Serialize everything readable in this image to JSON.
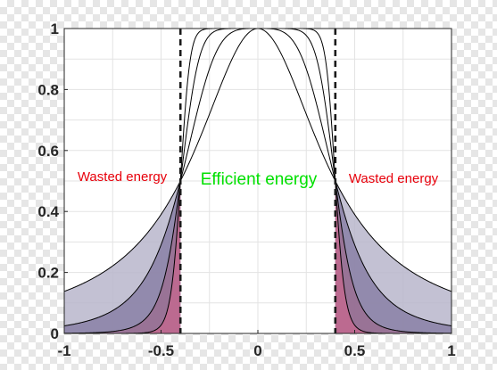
{
  "chart_data": {
    "type": "area",
    "title": "",
    "xlabel": "",
    "ylabel": "",
    "xlim": [
      -1,
      1
    ],
    "ylim": [
      0,
      1
    ],
    "x_ticks": [
      "-1",
      "-0.5",
      "0",
      "0.5",
      "1"
    ],
    "x_tick_values": [
      -1,
      -0.5,
      0,
      0.5,
      1
    ],
    "y_ticks": [
      "0",
      "0.2",
      "0.4",
      "0.6",
      "0.8",
      "1"
    ],
    "y_tick_values": [
      0,
      0.2,
      0.4,
      0.6,
      0.8,
      1
    ],
    "grid": true,
    "cutoffs": [
      -0.4,
      0.4
    ],
    "series": [
      {
        "order": 2,
        "fill": "#b9b6cb",
        "x": [
          -1,
          -0.8,
          -0.6,
          -0.4,
          -0.2,
          0,
          0.2,
          0.4,
          0.6,
          0.8,
          1
        ],
        "values": [
          0.015,
          0.06,
          0.2,
          0.5,
          0.86,
          1,
          0.86,
          0.5,
          0.2,
          0.06,
          0.015
        ]
      },
      {
        "order": 4,
        "fill": "#8a80a6",
        "x": [
          -1,
          -0.6,
          -0.5,
          -0.4,
          -0.3,
          -0.2,
          0,
          0.2,
          0.3,
          0.4,
          0.5,
          0.6,
          1
        ],
        "values": [
          0,
          0.04,
          0.2,
          0.5,
          0.83,
          0.96,
          1,
          0.96,
          0.83,
          0.5,
          0.2,
          0.04,
          0
        ]
      },
      {
        "order": 8,
        "fill": "#9a6f92",
        "x": [
          -1,
          -0.5,
          -0.45,
          -0.4,
          -0.35,
          -0.3,
          -0.2,
          0,
          0.2,
          0.3,
          0.35,
          0.4,
          0.45,
          0.5,
          1
        ],
        "values": [
          0,
          0.06,
          0.24,
          0.5,
          0.8,
          0.94,
          0.99,
          1,
          0.99,
          0.94,
          0.8,
          0.5,
          0.24,
          0.06,
          0
        ]
      },
      {
        "order": 16,
        "fill": "#c2698f",
        "x": [
          -1,
          -0.45,
          -0.42,
          -0.4,
          -0.38,
          -0.35,
          -0.3,
          0,
          0.3,
          0.35,
          0.38,
          0.4,
          0.42,
          0.45,
          1
        ],
        "values": [
          0,
          0.05,
          0.26,
          0.5,
          0.76,
          0.93,
          0.99,
          1,
          0.99,
          0.93,
          0.76,
          0.5,
          0.26,
          0.05,
          0
        ]
      }
    ],
    "annotations": {
      "left": {
        "text": "Wasted energy",
        "color": "#e8000b"
      },
      "center": {
        "text": "Efficient energy",
        "color": "#00e000"
      },
      "right": {
        "text": "Wasted energy",
        "color": "#e8000b"
      }
    }
  }
}
